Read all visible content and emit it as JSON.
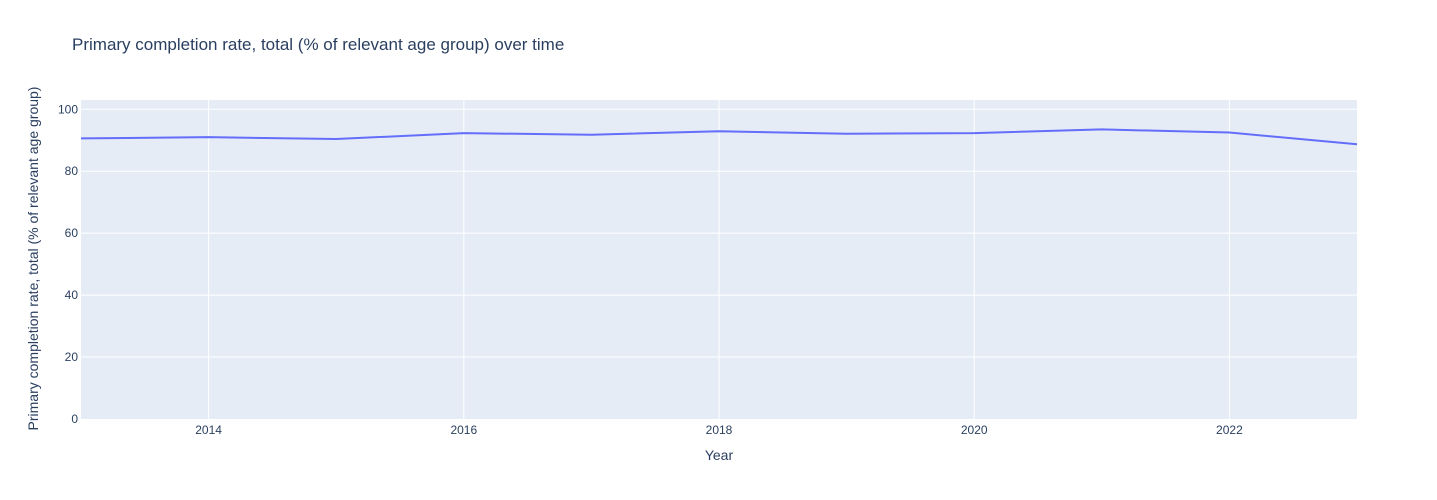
{
  "colors": {
    "plot_background": "#e5ecf6",
    "gridline": "#ffffff",
    "line": "#636efa",
    "text": "#2a3f5f"
  },
  "chart_data": {
    "type": "line",
    "title": "Primary completion rate, total (% of relevant age group) over time",
    "xlabel": "Year",
    "ylabel": "Primary completion rate, total (% of relevant age group)",
    "xlim": [
      2013,
      2023
    ],
    "ylim": [
      0,
      103
    ],
    "x_ticks": [
      2014,
      2016,
      2018,
      2020,
      2022
    ],
    "y_ticks": [
      0,
      20,
      40,
      60,
      80,
      100
    ],
    "grid": true,
    "legend": "none",
    "series": [
      {
        "x": [
          2013,
          2014,
          2015,
          2016,
          2017,
          2018,
          2019,
          2020,
          2021,
          2022,
          2023
        ],
        "y": [
          90.6,
          91.0,
          90.4,
          92.3,
          91.8,
          92.9,
          92.1,
          92.3,
          93.5,
          92.5,
          88.7
        ]
      }
    ]
  }
}
